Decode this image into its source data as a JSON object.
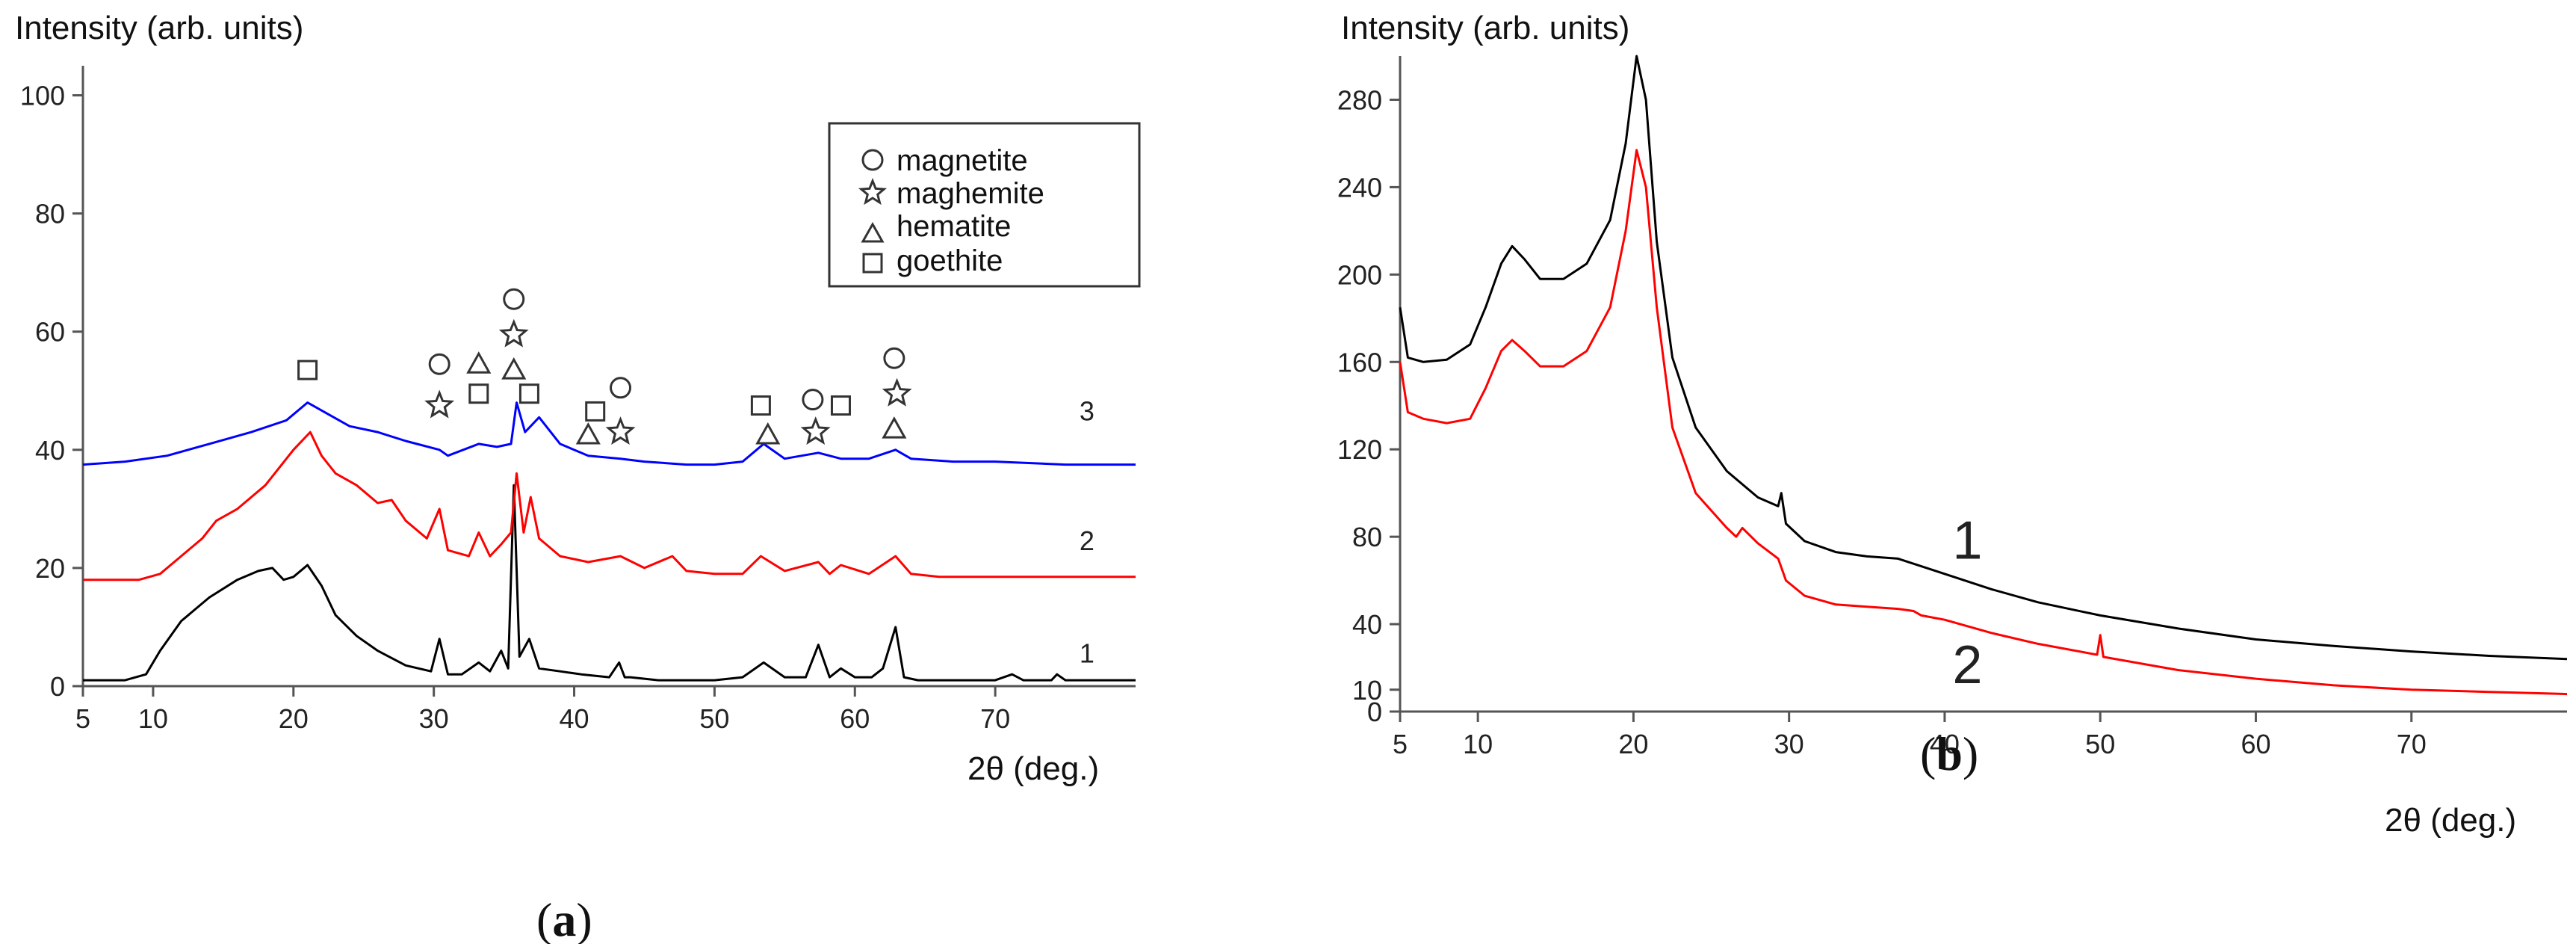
{
  "chart_data": [
    {
      "id": "a",
      "type": "line",
      "panel_label": "a",
      "ylabel": "Intensity (arb. units)",
      "xlabel": "2θ (deg.)",
      "xlim": [
        5,
        80
      ],
      "ylim": [
        0,
        105
      ],
      "x_ticks": [
        5,
        10,
        20,
        30,
        40,
        50,
        60,
        70
      ],
      "y_ticks": [
        0,
        20,
        40,
        60,
        80,
        100
      ],
      "grid": false,
      "legend_position": "top-right",
      "legend": [
        {
          "symbol": "circle",
          "label": "magnetite"
        },
        {
          "symbol": "star",
          "label": "maghemite"
        },
        {
          "symbol": "triangle",
          "label": "hematite"
        },
        {
          "symbol": "square",
          "label": "goethite"
        }
      ],
      "series": [
        {
          "name": "1",
          "color": "#000000",
          "label_x": 76,
          "label_y": 4,
          "x": [
            5,
            8,
            9.5,
            10.5,
            12,
            14,
            16,
            17.5,
            18.5,
            19.3,
            20,
            21,
            22,
            23,
            24.5,
            26,
            28,
            29.8,
            30.4,
            31,
            32,
            33.2,
            34,
            34.8,
            35.3,
            35.7,
            36.1,
            36.8,
            37.5,
            39,
            40.5,
            42.5,
            43.2,
            43.6,
            44,
            46,
            48,
            50,
            52,
            53.5,
            55,
            56.5,
            57.4,
            58.2,
            59,
            60,
            61.2,
            62,
            62.9,
            63.5,
            64.5,
            66,
            68,
            70,
            71.2,
            72,
            74,
            74.4,
            75,
            77,
            80
          ],
          "y": [
            1,
            1,
            2,
            6,
            11,
            15,
            18,
            19.5,
            20,
            18,
            18.5,
            20.5,
            17,
            12,
            8.5,
            6,
            3.5,
            2.5,
            8,
            2,
            2,
            4,
            2.5,
            6,
            3,
            34,
            5,
            8,
            3,
            2.5,
            2,
            1.5,
            4,
            1.5,
            1.5,
            1,
            1,
            1,
            1.5,
            4,
            1.5,
            1.5,
            7,
            1.5,
            3,
            1.5,
            1.5,
            3,
            10,
            1.5,
            1,
            1,
            1,
            1,
            2,
            1,
            1,
            2,
            1,
            1,
            1
          ]
        },
        {
          "name": "2",
          "color": "#ff0000",
          "label_x": 76,
          "label_y": 23,
          "x": [
            5,
            9,
            10.5,
            12,
            13.5,
            14.5,
            16,
            18,
            20,
            21.2,
            22,
            23,
            24.5,
            26,
            27,
            28,
            29.5,
            30.4,
            31,
            32.5,
            33.2,
            34,
            34.8,
            35.5,
            35.9,
            36.4,
            36.9,
            37.5,
            39,
            41,
            43.3,
            45,
            47,
            48,
            50,
            52,
            53.3,
            55,
            57.4,
            58.2,
            59,
            61,
            62.9,
            64,
            66,
            68,
            71,
            74,
            77,
            80
          ],
          "y": [
            18,
            18,
            19,
            22,
            25,
            28,
            30,
            34,
            40,
            43,
            39,
            36,
            34,
            31,
            31.5,
            28,
            25,
            30,
            23,
            22,
            26,
            22,
            24,
            26,
            36,
            26,
            32,
            25,
            22,
            21,
            22,
            20,
            22,
            19.5,
            19,
            19,
            22,
            19.5,
            21,
            19,
            20.5,
            19,
            22,
            19,
            18.5,
            18.5,
            18.5,
            18.5,
            18.5,
            18.5
          ]
        },
        {
          "name": "3",
          "color": "#0000ff",
          "label_x": 76,
          "label_y": 45,
          "x": [
            5,
            8,
            11,
            14,
            17,
            19.5,
            21,
            22.5,
            24,
            26,
            28,
            30.4,
            31,
            33.2,
            34.5,
            35.5,
            35.9,
            36.5,
            37.5,
            39,
            41,
            43.3,
            45,
            48,
            50,
            52,
            53.5,
            55,
            57.4,
            59,
            61,
            62.9,
            64,
            67,
            70,
            75,
            80
          ],
          "y": [
            37.5,
            38,
            39,
            41,
            43,
            45,
            48,
            46,
            44,
            43,
            41.5,
            40,
            39,
            41,
            40.5,
            41,
            48,
            43,
            45.5,
            41,
            39,
            38.5,
            38,
            37.5,
            37.5,
            38,
            41,
            38.5,
            39.5,
            38.5,
            38.5,
            40,
            38.5,
            38,
            38,
            37.5,
            37.5
          ]
        }
      ],
      "markers": [
        {
          "symbol": "square",
          "x": 21,
          "y": 53.5
        },
        {
          "symbol": "circle",
          "x": 30.4,
          "y": 54.5
        },
        {
          "symbol": "star",
          "x": 30.4,
          "y": 47.5
        },
        {
          "symbol": "triangle",
          "x": 33.2,
          "y": 54.5
        },
        {
          "symbol": "square",
          "x": 33.2,
          "y": 49.5
        },
        {
          "symbol": "circle",
          "x": 35.7,
          "y": 65.5
        },
        {
          "symbol": "star",
          "x": 35.7,
          "y": 59.5
        },
        {
          "symbol": "triangle",
          "x": 35.7,
          "y": 53.5
        },
        {
          "symbol": "square",
          "x": 36.8,
          "y": 49.5
        },
        {
          "symbol": "circle",
          "x": 43.3,
          "y": 50.5
        },
        {
          "symbol": "square",
          "x": 41.5,
          "y": 46.5
        },
        {
          "symbol": "triangle",
          "x": 41,
          "y": 42.5
        },
        {
          "symbol": "star",
          "x": 43.3,
          "y": 43
        },
        {
          "symbol": "square",
          "x": 53.3,
          "y": 47.5
        },
        {
          "symbol": "triangle",
          "x": 53.8,
          "y": 42.5
        },
        {
          "symbol": "circle",
          "x": 57,
          "y": 48.5
        },
        {
          "symbol": "star",
          "x": 57.2,
          "y": 43
        },
        {
          "symbol": "square",
          "x": 59,
          "y": 47.5
        },
        {
          "symbol": "circle",
          "x": 62.8,
          "y": 55.5
        },
        {
          "symbol": "star",
          "x": 63,
          "y": 49.5
        },
        {
          "symbol": "triangle",
          "x": 62.8,
          "y": 43.5
        }
      ]
    },
    {
      "id": "b",
      "type": "line",
      "panel_label": "b",
      "ylabel": "Intensity (arb. units)",
      "xlabel": "2θ (deg.)",
      "xlim": [
        5,
        80
      ],
      "ylim": [
        0,
        300
      ],
      "x_ticks": [
        5,
        10,
        20,
        30,
        40,
        50,
        60,
        70
      ],
      "y_ticks": [
        0,
        10,
        40,
        80,
        120,
        160,
        200,
        240,
        280
      ],
      "grid": false,
      "series": [
        {
          "name": "1",
          "color": "#000000",
          "label_x": 40.5,
          "label_y": 70,
          "x": [
            5,
            5.5,
            6.5,
            8,
            9.5,
            10.5,
            11.5,
            12.2,
            13,
            14,
            15.5,
            17,
            18.5,
            19.5,
            20.2,
            20.8,
            21.5,
            22.5,
            24,
            26,
            28,
            29.3,
            29.5,
            29.8,
            31,
            33,
            35,
            37,
            40,
            43,
            46,
            50,
            55,
            60,
            65,
            70,
            75,
            80
          ],
          "y": [
            185,
            162,
            160,
            161,
            168,
            185,
            205,
            213,
            207,
            198,
            198,
            205,
            225,
            260,
            300,
            280,
            215,
            162,
            130,
            110,
            98,
            94,
            100,
            86,
            78,
            73,
            71,
            70,
            63,
            56,
            50,
            44,
            38,
            33,
            30,
            27.5,
            25.5,
            24
          ]
        },
        {
          "name": "2",
          "color": "#ff0000",
          "label_x": 40.5,
          "label_y": 13,
          "x": [
            5,
            5.5,
            6.5,
            8,
            9.5,
            10.5,
            11.5,
            12.2,
            13,
            14,
            15.5,
            17,
            18.5,
            19.5,
            20.2,
            20.8,
            21.5,
            22.5,
            24,
            26,
            26.6,
            27,
            28,
            29.3,
            29.5,
            29.8,
            31,
            33,
            35,
            37,
            38,
            38.5,
            40,
            43,
            46,
            49.8,
            50,
            50.2,
            55,
            60,
            65,
            70,
            75,
            80
          ],
          "y": [
            160,
            137,
            134,
            132,
            134,
            148,
            165,
            170,
            165,
            158,
            158,
            165,
            185,
            220,
            257,
            240,
            185,
            130,
            100,
            84,
            80,
            84,
            77,
            70,
            66,
            60,
            53,
            49,
            48,
            47,
            46,
            44,
            42,
            36,
            31,
            26,
            35,
            25,
            19,
            15,
            12,
            10,
            9,
            8
          ]
        }
      ]
    }
  ]
}
